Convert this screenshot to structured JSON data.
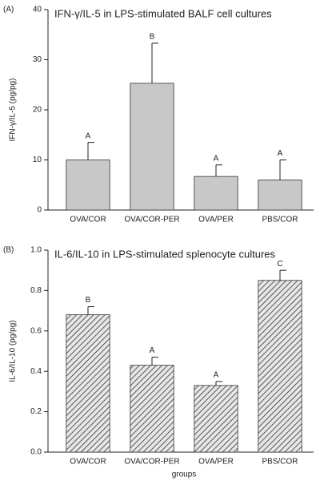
{
  "chart_data": [
    {
      "type": "bar",
      "panel": "(A)",
      "title": "IFN-γ/IL-5 in LPS-stimulated BALF cell cultures",
      "y_label": "IFN-γ/IL-5 (pg/pg)",
      "categories": [
        "OVA/COR",
        "OVA/COR-PER",
        "OVA/PER",
        "PBS/COR"
      ],
      "values": [
        10,
        25.3,
        6.7,
        6
      ],
      "errors": [
        3.5,
        8,
        2.3,
        4
      ],
      "annotations": [
        "A",
        "B",
        "A",
        "A"
      ],
      "color": "#c8c8c8",
      "hatch": false,
      "ylim": [
        0,
        40
      ],
      "yticks": [
        0,
        10,
        20,
        30,
        40
      ]
    },
    {
      "type": "bar",
      "panel": "(B)",
      "title": "IL-6/IL-10 in LPS-stimulated splenocyte cultures",
      "y_label": "IL-6/IL-10 (pg/pg)",
      "x_label": "groups",
      "categories": [
        "OVA/COR",
        "OVA/COR-PER",
        "OVA/PER",
        "PBS/COR"
      ],
      "values": [
        0.68,
        0.43,
        0.33,
        0.85
      ],
      "errors": [
        0.04,
        0.04,
        0.02,
        0.05
      ],
      "annotations": [
        "B",
        "A",
        "A",
        "C"
      ],
      "color": "#e0e0e0",
      "hatch": true,
      "ylim": [
        0,
        1
      ],
      "yticks": [
        {
          "value": 0,
          "label": "0.0"
        },
        0.2,
        0.4,
        0.6,
        0.8,
        {
          "value": 1,
          "label": "1.0"
        }
      ]
    }
  ]
}
